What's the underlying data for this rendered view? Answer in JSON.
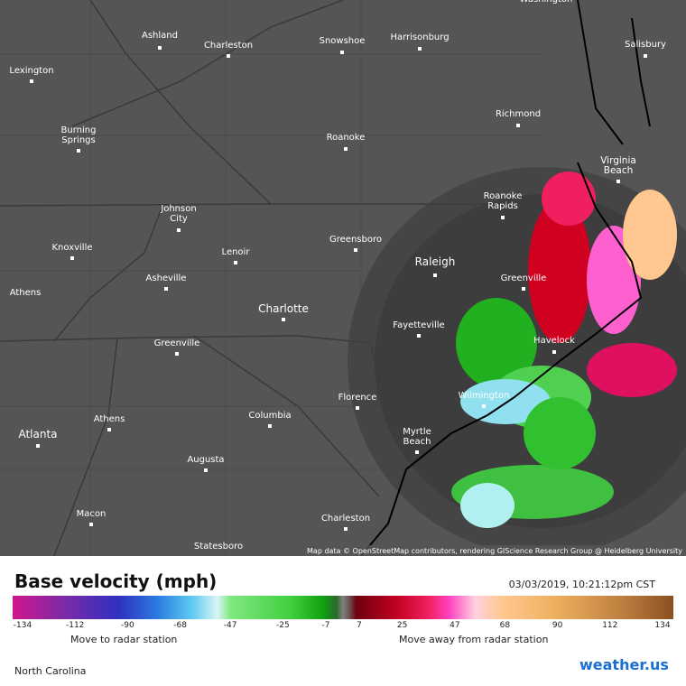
{
  "map": {
    "cities": [
      {
        "lines": [
          "Washington"
        ]
      },
      {
        "lines": [
          "Ashland"
        ]
      },
      {
        "lines": [
          "Charleston"
        ]
      },
      {
        "lines": [
          "Snowshoe"
        ]
      },
      {
        "lines": [
          "Harrisonburg"
        ]
      },
      {
        "lines": [
          "Salisbury"
        ]
      },
      {
        "lines": [
          "Lexington"
        ]
      },
      {
        "lines": [
          "Richmond"
        ]
      },
      {
        "lines": [
          "Burning",
          "Springs"
        ]
      },
      {
        "lines": [
          "Roanoke"
        ]
      },
      {
        "lines": [
          "Virginia",
          "Beach"
        ]
      },
      {
        "lines": [
          "Johnson",
          "City"
        ]
      },
      {
        "lines": [
          "Roanoke",
          "Rapids"
        ]
      },
      {
        "lines": [
          "Greensboro"
        ]
      },
      {
        "lines": [
          "Knoxville"
        ]
      },
      {
        "lines": [
          "Lenoir"
        ]
      },
      {
        "lines": [
          "Raleigh"
        ]
      },
      {
        "lines": [
          "Greenville"
        ]
      },
      {
        "lines": [
          "Asheville"
        ]
      },
      {
        "lines": [
          "Athens"
        ]
      },
      {
        "lines": [
          "Charlotte"
        ]
      },
      {
        "lines": [
          "Fayetteville"
        ]
      },
      {
        "lines": [
          "Havelock"
        ]
      },
      {
        "lines": [
          "Greenville"
        ]
      },
      {
        "lines": [
          "Florence"
        ]
      },
      {
        "lines": [
          "Wilmington"
        ]
      },
      {
        "lines": [
          "Athens"
        ]
      },
      {
        "lines": [
          "Columbia"
        ]
      },
      {
        "lines": [
          "Atlanta"
        ]
      },
      {
        "lines": [
          "Myrtle",
          "Beach"
        ]
      },
      {
        "lines": [
          "Augusta"
        ]
      },
      {
        "lines": [
          "Macon"
        ]
      },
      {
        "lines": [
          "Charleston"
        ]
      },
      {
        "lines": [
          "Statesboro"
        ]
      }
    ],
    "attribution": "Map data © OpenStreetMap contributors, rendering GIScience Research Group @ Heidelberg University"
  },
  "legend": {
    "title": "Base velocity (mph)",
    "timestamp": "03/03/2019, 10:21:12pm CST",
    "ticks": [
      -134,
      -112,
      -90,
      -68,
      -47,
      -25,
      -7,
      7,
      25,
      47,
      68,
      90,
      112,
      134
    ],
    "left_caption": "Move to radar station",
    "right_caption": "Move away from radar station"
  },
  "footer": {
    "region": "North Carolina",
    "logo": "weather.us"
  }
}
